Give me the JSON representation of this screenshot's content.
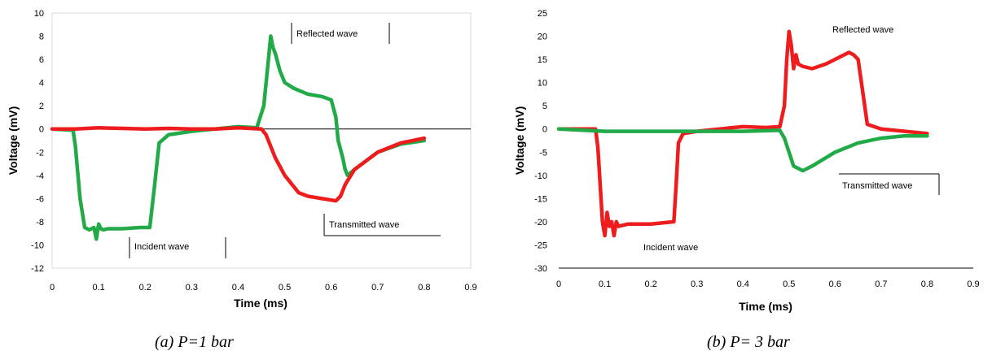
{
  "colors": {
    "red": "#ee1c1c",
    "green": "#22aa48",
    "axis": "#000000",
    "tick": "#000000"
  },
  "captions": [
    "(a) P=1 bar",
    "(b) P= 3 bar"
  ],
  "chart_data": [
    {
      "type": "line",
      "xlabel": "Time (ms)",
      "ylabel": "Voltage (mV)",
      "xlim": [
        0,
        0.9
      ],
      "ylim": [
        -12,
        10
      ],
      "xticks": [
        "0",
        "0.1",
        "0.2",
        "0.3",
        "0.4",
        "0.5",
        "0.6",
        "0.7",
        "0.8",
        "0.9"
      ],
      "yticks": [
        "10",
        "8",
        "6",
        "4",
        "2",
        "0",
        "-2",
        "-4",
        "-6",
        "-8",
        "-10",
        "-12"
      ],
      "grid": false,
      "frame": "box",
      "annotations": [
        "Reflected wave",
        "Transmitted wave",
        "Incident wave"
      ],
      "series": [
        {
          "color": "#22aa48",
          "x": [
            0,
            0.045,
            0.05,
            0.06,
            0.07,
            0.08,
            0.09,
            0.095,
            0.1,
            0.105,
            0.11,
            0.12,
            0.15,
            0.19,
            0.21,
            0.22,
            0.23,
            0.25,
            0.3,
            0.35,
            0.4,
            0.44,
            0.455,
            0.465,
            0.47,
            0.475,
            0.48,
            0.49,
            0.5,
            0.52,
            0.55,
            0.58,
            0.6,
            0.61,
            0.615,
            0.625,
            0.63,
            0.635,
            0.65,
            0.7,
            0.75,
            0.8
          ],
          "y": [
            0,
            -0.1,
            -1.5,
            -6,
            -8.5,
            -8.7,
            -8.5,
            -9.5,
            -8.2,
            -8.6,
            -8.7,
            -8.6,
            -8.6,
            -8.5,
            -8.5,
            -5,
            -1.2,
            -0.5,
            -0.2,
            0,
            0.2,
            0.1,
            2,
            6,
            8,
            7,
            6.5,
            5,
            4,
            3.5,
            3,
            2.8,
            2.5,
            1,
            -1,
            -2.5,
            -3.5,
            -4,
            -3.5,
            -2,
            -1.3,
            -1
          ]
        },
        {
          "color": "#ee1c1c",
          "x": [
            0,
            0.05,
            0.1,
            0.15,
            0.2,
            0.25,
            0.3,
            0.35,
            0.4,
            0.45,
            0.46,
            0.48,
            0.5,
            0.53,
            0.55,
            0.58,
            0.61,
            0.62,
            0.63,
            0.65,
            0.7,
            0.75,
            0.8
          ],
          "y": [
            0,
            0,
            0.1,
            0.05,
            0,
            0.05,
            0,
            0,
            0.1,
            0,
            -0.5,
            -2.5,
            -4,
            -5.5,
            -5.8,
            -6,
            -6.2,
            -5.8,
            -4.8,
            -3.5,
            -2,
            -1.2,
            -0.8
          ]
        }
      ]
    },
    {
      "type": "line",
      "xlabel": "Time (ms)",
      "ylabel": "Voltage (mV)",
      "xlim": [
        0,
        0.9
      ],
      "ylim": [
        -30,
        25
      ],
      "xticks": [
        "0",
        "0.1",
        "0.2",
        "0.3",
        "0.4",
        "0.5",
        "0.6",
        "0.7",
        "0.8",
        "0.9"
      ],
      "yticks": [
        "25",
        "20",
        "15",
        "10",
        "5",
        "0",
        "-5",
        "-10",
        "-15",
        "-20",
        "-25",
        "-30"
      ],
      "grid": false,
      "frame": "bottom-axis",
      "annotations": [
        "Reflected wave",
        "Transmitted wave",
        "Incident wave"
      ],
      "series": [
        {
          "color": "#ee1c1c",
          "x": [
            0,
            0.08,
            0.085,
            0.09,
            0.095,
            0.1,
            0.105,
            0.11,
            0.115,
            0.12,
            0.125,
            0.13,
            0.15,
            0.2,
            0.25,
            0.255,
            0.26,
            0.27,
            0.3,
            0.35,
            0.4,
            0.45,
            0.48,
            0.49,
            0.495,
            0.5,
            0.505,
            0.51,
            0.515,
            0.52,
            0.53,
            0.55,
            0.58,
            0.6,
            0.63,
            0.64,
            0.65,
            0.66,
            0.67,
            0.7,
            0.8
          ],
          "y": [
            0,
            0,
            -4,
            -12,
            -20,
            -23,
            -18,
            -21,
            -20,
            -23,
            -20,
            -21,
            -20.5,
            -20.5,
            -20,
            -12,
            -3,
            -1,
            -0.5,
            0,
            0.5,
            0.3,
            0.5,
            5,
            15,
            21,
            18,
            13,
            16,
            14,
            13.5,
            13,
            14,
            15,
            16.5,
            16,
            15,
            8,
            1,
            0,
            -1
          ]
        },
        {
          "color": "#22aa48",
          "x": [
            0,
            0.1,
            0.2,
            0.3,
            0.4,
            0.48,
            0.49,
            0.5,
            0.51,
            0.53,
            0.55,
            0.6,
            0.65,
            0.7,
            0.75,
            0.8
          ],
          "y": [
            0,
            -0.5,
            -0.5,
            -0.5,
            -0.5,
            -0.3,
            -2,
            -5,
            -8,
            -9,
            -8,
            -5,
            -3,
            -2,
            -1.5,
            -1.5
          ]
        }
      ]
    }
  ]
}
